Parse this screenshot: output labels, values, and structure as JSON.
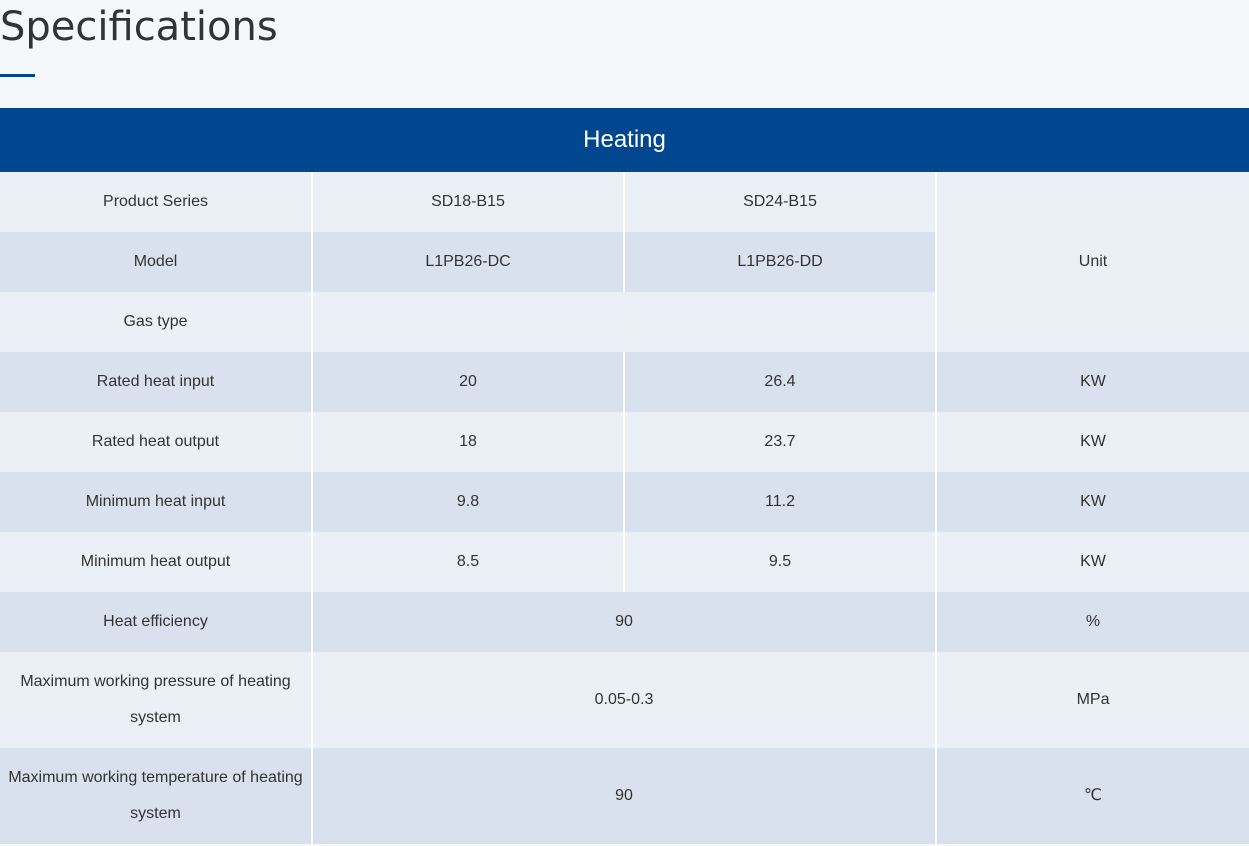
{
  "page": {
    "title": "Specifications"
  },
  "table": {
    "section": "Heating",
    "product_series": {
      "label": "Product Series",
      "values": [
        "SD18-B15",
        "SD24-B15"
      ]
    },
    "model": {
      "label": "Model",
      "values": [
        "L1PB26-DC",
        "L1PB26-DD"
      ]
    },
    "unit_header": "Unit",
    "gas_type": {
      "label": "Gas type",
      "value": ""
    },
    "rows": [
      {
        "label": "Rated heat input",
        "values": [
          "20",
          "26.4"
        ],
        "unit": "KW"
      },
      {
        "label": "Rated heat output",
        "values": [
          "18",
          "23.7"
        ],
        "unit": "KW"
      },
      {
        "label": "Minimum heat input",
        "values": [
          "9.8",
          "11.2"
        ],
        "unit": "KW"
      },
      {
        "label": "Minimum heat output",
        "values": [
          "8.5",
          "9.5"
        ],
        "unit": "KW"
      }
    ],
    "merged_rows": [
      {
        "label": "Heat efficiency",
        "value": "90",
        "unit": "%"
      },
      {
        "label": "Maximum working pressure of heating system",
        "value": "0.05-0.3",
        "unit": "MPa"
      },
      {
        "label": "Maximum working temperature of heating system",
        "value": "90",
        "unit": "℃"
      }
    ]
  },
  "colors": {
    "accent": "#00478f",
    "row_light": "#ebf0f6",
    "row_dark": "#d9e1ee"
  }
}
